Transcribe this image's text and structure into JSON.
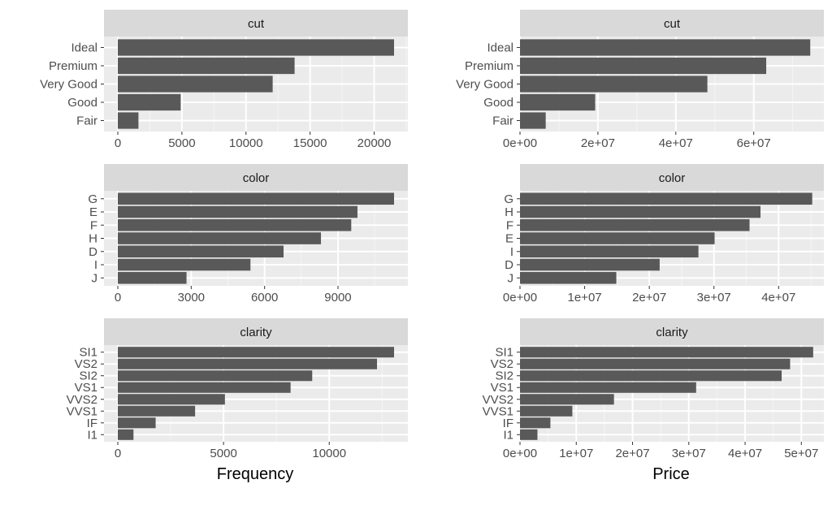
{
  "colors": {
    "panel_background": "#ebebeb",
    "strip_background": "#d9d9d9",
    "grid_major": "#ffffff",
    "grid_minor": "#f5f5f5",
    "bar_fill": "#595959",
    "tick_text": "#4d4d4d"
  },
  "axis_titles": {
    "left": "Frequency",
    "right": "Price"
  },
  "chart_data": [
    {
      "type": "bar",
      "orientation": "horizontal",
      "facet": "cut",
      "categories": [
        "Ideal",
        "Premium",
        "Very Good",
        "Good",
        "Fair"
      ],
      "values": [
        21551,
        13791,
        12082,
        4906,
        1610
      ],
      "xlim": [
        -1078,
        22629
      ],
      "xticks": [
        0,
        5000,
        10000,
        15000,
        20000
      ],
      "xtick_labels": [
        "0",
        "5000",
        "10000",
        "15000",
        "20000"
      ],
      "xlabel": "Frequency",
      "grid": true
    },
    {
      "type": "bar",
      "orientation": "horizontal",
      "facet": "cut",
      "categories": [
        "Ideal",
        "Premium",
        "Very Good",
        "Good",
        "Fair"
      ],
      "values": [
        74500000,
        63200000,
        48100000,
        19300000,
        6600000
      ],
      "xlim": [
        0,
        78000000
      ],
      "xticks": [
        0,
        20000000,
        40000000,
        60000000
      ],
      "xtick_labels": [
        "0e+00",
        "2e+07",
        "4e+07",
        "6e+07"
      ],
      "xlabel": "Price",
      "grid": true
    },
    {
      "type": "bar",
      "orientation": "horizontal",
      "facet": "color",
      "categories": [
        "G",
        "E",
        "F",
        "H",
        "D",
        "I",
        "J"
      ],
      "values": [
        11292,
        9797,
        9542,
        8304,
        6775,
        5422,
        2808
      ],
      "xlim": [
        -565,
        11857
      ],
      "xticks": [
        0,
        3000,
        6000,
        9000
      ],
      "xtick_labels": [
        "0",
        "3000",
        "6000",
        "9000"
      ],
      "xlabel": "Frequency",
      "grid": true
    },
    {
      "type": "bar",
      "orientation": "horizontal",
      "facet": "color",
      "categories": [
        "G",
        "H",
        "F",
        "E",
        "I",
        "D",
        "J"
      ],
      "values": [
        45200000,
        37200000,
        35500000,
        30100000,
        27600000,
        21600000,
        14900000
      ],
      "xlim": [
        0,
        47000000
      ],
      "xticks": [
        0,
        10000000,
        20000000,
        30000000,
        40000000
      ],
      "xtick_labels": [
        "0e+00",
        "1e+07",
        "2e+07",
        "3e+07",
        "4e+07"
      ],
      "xlabel": "Price",
      "grid": true
    },
    {
      "type": "bar",
      "orientation": "horizontal",
      "facet": "clarity",
      "categories": [
        "SI1",
        "VS2",
        "SI2",
        "VS1",
        "VVS2",
        "VVS1",
        "IF",
        "I1"
      ],
      "values": [
        13065,
        12258,
        9194,
        8171,
        5066,
        3655,
        1790,
        741
      ],
      "xlim": [
        -653,
        13718
      ],
      "xticks": [
        0,
        5000,
        10000
      ],
      "xtick_labels": [
        "0",
        "5000",
        "10000"
      ],
      "xlabel": "Frequency",
      "grid": true
    },
    {
      "type": "bar",
      "orientation": "horizontal",
      "facet": "clarity",
      "categories": [
        "SI1",
        "VS2",
        "SI2",
        "VS1",
        "VVS2",
        "VVS1",
        "IF",
        "I1"
      ],
      "values": [
        52100000,
        48000000,
        46500000,
        31300000,
        16700000,
        9300000,
        5400000,
        3100000
      ],
      "xlim": [
        0,
        54000000
      ],
      "xticks": [
        0,
        10000000,
        20000000,
        30000000,
        40000000,
        50000000
      ],
      "xtick_labels": [
        "0e+00",
        "1e+07",
        "2e+07",
        "3e+07",
        "4e+07",
        "5e+07"
      ],
      "xlabel": "Price",
      "grid": true
    }
  ]
}
